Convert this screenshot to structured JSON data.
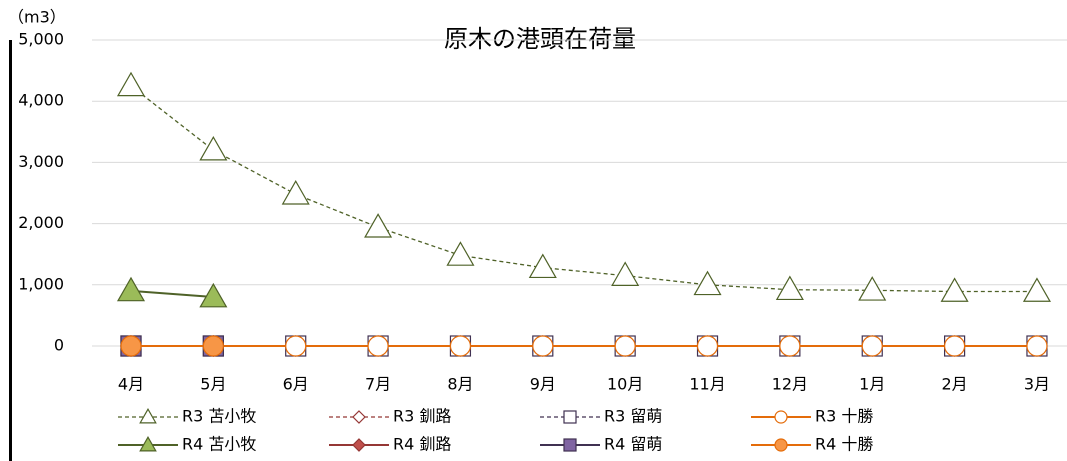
{
  "chart_data": {
    "type": "line",
    "title": "原木の港頭在荷量",
    "y_unit": "（m3）",
    "categories": [
      "4月",
      "5月",
      "6月",
      "7月",
      "8月",
      "9月",
      "10月",
      "11月",
      "12月",
      "1月",
      "2月",
      "3月"
    ],
    "ylim": [
      0,
      5000
    ],
    "yticks": [
      0,
      {
        "value": 1000,
        "label": "1,000"
      },
      {
        "value": 2000,
        "label": "2,000"
      },
      {
        "value": 3000,
        "label": "3,000"
      },
      {
        "value": 4000,
        "label": "4,000"
      },
      {
        "value": 5000,
        "label": "5,000"
      }
    ],
    "grid": true,
    "series": [
      {
        "name": "R3 苫小牧",
        "color": "#4f6228",
        "marker": "triangle",
        "marker_fill": "#ffffff",
        "dashed": true,
        "values": [
          4250,
          3200,
          2480,
          1940,
          1480,
          1280,
          1150,
          1000,
          920,
          910,
          890,
          890
        ]
      },
      {
        "name": "R3 釧路",
        "color": "#953735",
        "marker": "diamond",
        "marker_fill": "#ffffff",
        "dashed": true,
        "values": [
          0,
          0,
          0,
          0,
          0,
          0,
          0,
          0,
          0,
          0,
          0,
          0
        ]
      },
      {
        "name": "R3 留萌",
        "color": "#403152",
        "marker": "square",
        "marker_fill": "#ffffff",
        "dashed": true,
        "values": [
          0,
          0,
          0,
          0,
          0,
          0,
          0,
          0,
          0,
          0,
          0,
          0
        ]
      },
      {
        "name": "R3 十勝",
        "color": "#e46c0a",
        "marker": "circle",
        "marker_fill": "#ffffff",
        "dashed": false,
        "values": [
          0,
          0,
          0,
          0,
          0,
          0,
          0,
          0,
          0,
          0,
          0,
          0
        ]
      },
      {
        "name": "R4 苫小牧",
        "color": "#4f6228",
        "marker": "triangle",
        "marker_fill": "#9bbb59",
        "dashed": false,
        "values": [
          900,
          800,
          null,
          null,
          null,
          null,
          null,
          null,
          null,
          null,
          null,
          null
        ]
      },
      {
        "name": "R4 釧路",
        "color": "#953735",
        "marker": "diamond",
        "marker_fill": "#c0504d",
        "dashed": false,
        "values": [
          0,
          0,
          null,
          null,
          null,
          null,
          null,
          null,
          null,
          null,
          null,
          null
        ]
      },
      {
        "name": "R4 留萌",
        "color": "#403152",
        "marker": "square",
        "marker_fill": "#8064a2",
        "dashed": false,
        "values": [
          0,
          0,
          null,
          null,
          null,
          null,
          null,
          null,
          null,
          null,
          null,
          null
        ]
      },
      {
        "name": "R4 十勝",
        "color": "#e46c0a",
        "marker": "circle",
        "marker_fill": "#f79646",
        "dashed": false,
        "values": [
          0,
          0,
          null,
          null,
          null,
          null,
          null,
          null,
          null,
          null,
          null,
          null
        ]
      }
    ]
  }
}
